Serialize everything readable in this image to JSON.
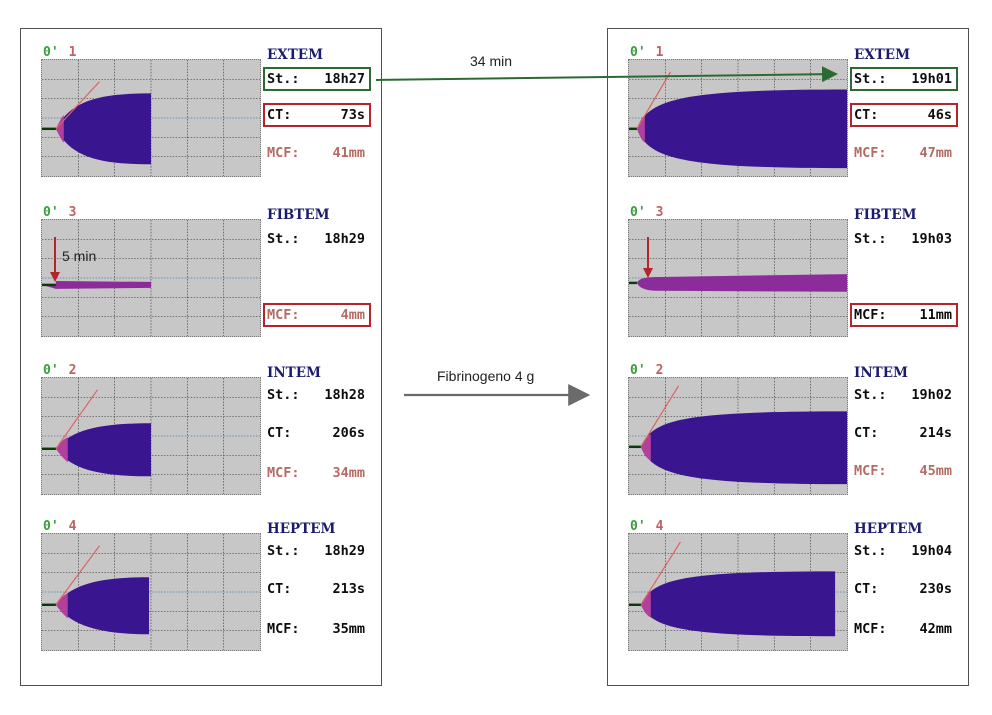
{
  "annotations": {
    "time_gap": "34 min",
    "delay": "5 min",
    "treatment": "Fibrinogeno 4 g"
  },
  "colors": {
    "clot_body": "#3a1590",
    "clot_onset": "#b0409c",
    "fibtem_trace": "#8b2c9a",
    "angle_line": "#e06060",
    "grid_bg": "#c7c7c7",
    "highlight_red": "#b3252a",
    "highlight_green": "#2b6b32",
    "arrow_gray": "#6b6b6b"
  },
  "before": {
    "panels": [
      {
        "assay": "EXTEM",
        "channel": "0'",
        "channel_num": "1",
        "st_label": "St.:",
        "st_value": "18h27",
        "ct_label": "CT:",
        "ct_value": "73s",
        "mcf_label": "MCF:",
        "mcf_value": "41mm"
      },
      {
        "assay": "FIBTEM",
        "channel": "0'",
        "channel_num": "3",
        "st_label": "St.:",
        "st_value": "18h29",
        "mcf_label": "MCF:",
        "mcf_value": "4mm"
      },
      {
        "assay": "INTEM",
        "channel": "0'",
        "channel_num": "2",
        "st_label": "St.:",
        "st_value": "18h28",
        "ct_label": "CT:",
        "ct_value": "206s",
        "mcf_label": "MCF:",
        "mcf_value": "34mm"
      },
      {
        "assay": "HEPTEM",
        "channel": "0'",
        "channel_num": "4",
        "st_label": "St.:",
        "st_value": "18h29",
        "ct_label": "CT:",
        "ct_value": "213s",
        "mcf_label": "MCF:",
        "mcf_value": "35mm"
      }
    ]
  },
  "after": {
    "panels": [
      {
        "assay": "EXTEM",
        "channel": "0'",
        "channel_num": "1",
        "st_label": "St.:",
        "st_value": "19h01",
        "ct_label": "CT:",
        "ct_value": "46s",
        "mcf_label": "MCF:",
        "mcf_value": "47mm"
      },
      {
        "assay": "FIBTEM",
        "channel": "0'",
        "channel_num": "3",
        "st_label": "St.:",
        "st_value": "19h03",
        "mcf_label": "MCF:",
        "mcf_value": "11mm"
      },
      {
        "assay": "INTEM",
        "channel": "0'",
        "channel_num": "2",
        "st_label": "St.:",
        "st_value": "19h02",
        "ct_label": "CT:",
        "ct_value": "214s",
        "mcf_label": "MCF:",
        "mcf_value": "45mm"
      },
      {
        "assay": "HEPTEM",
        "channel": "0'",
        "channel_num": "4",
        "st_label": "St.:",
        "st_value": "19h04",
        "ct_label": "CT:",
        "ct_value": "230s",
        "mcf_label": "MCF:",
        "mcf_value": "42mm"
      }
    ]
  }
}
